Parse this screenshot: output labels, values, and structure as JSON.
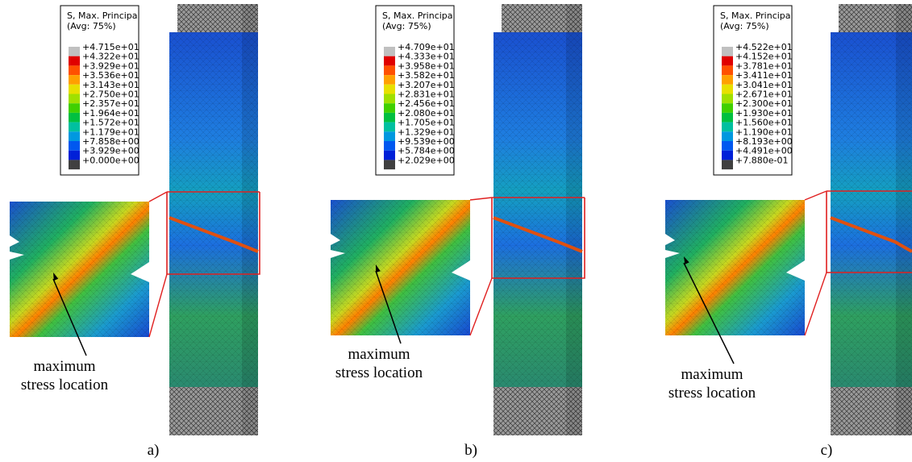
{
  "panels": [
    {
      "legend_title": [
        "S, Max. Principal",
        "(Avg: 75%)"
      ],
      "legend_labels": [
        "+4.715e+01",
        "+4.322e+01",
        "+3.929e+01",
        "+3.536e+01",
        "+3.143e+01",
        "+2.750e+01",
        "+2.357e+01",
        "+1.964e+01",
        "+1.572e+01",
        "+1.179e+01",
        "+7.858e+00",
        "+3.929e+00",
        "+0.000e+00"
      ],
      "annotation": [
        "maximum",
        "stress location"
      ],
      "label": "a)"
    },
    {
      "legend_title": [
        "S, Max. Principal",
        "(Avg: 75%)"
      ],
      "legend_labels": [
        "+4.709e+01",
        "+4.333e+01",
        "+3.958e+01",
        "+3.582e+01",
        "+3.207e+01",
        "+2.831e+01",
        "+2.456e+01",
        "+2.080e+01",
        "+1.705e+01",
        "+1.329e+01",
        "+9.539e+00",
        "+5.784e+00",
        "+2.029e+00"
      ],
      "annotation": [
        "maximum",
        "stress location"
      ],
      "label": "b)"
    },
    {
      "legend_title": [
        "S, Max. Principal",
        "(Avg: 75%)"
      ],
      "legend_labels": [
        "+4.522e+01",
        "+4.152e+01",
        "+3.781e+01",
        "+3.411e+01",
        "+3.041e+01",
        "+2.671e+01",
        "+2.300e+01",
        "+1.930e+01",
        "+1.560e+01",
        "+1.190e+01",
        "+8.193e+00",
        "+4.491e+00",
        "+7.880e-01"
      ],
      "annotation": [
        "maximum",
        "stress location"
      ],
      "label": "c)"
    }
  ]
}
